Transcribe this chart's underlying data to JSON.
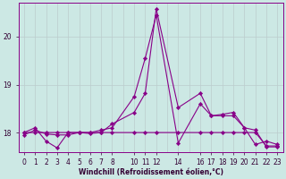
{
  "xlabel": "Windchill (Refroidissement éolien,°C)",
  "background_color": "#cce8e4",
  "grid_color": "#bbcccc",
  "line_color": "#880088",
  "ylim": [
    17.6,
    20.7
  ],
  "xlim": [
    -0.5,
    23.5
  ],
  "yticks": [
    18,
    19,
    20
  ],
  "x_positions": [
    0,
    1,
    2,
    3,
    4,
    5,
    6,
    7,
    8,
    10,
    11,
    12,
    14,
    16,
    17,
    18,
    19,
    20,
    21,
    22,
    23
  ],
  "x_tick_labels": [
    "0",
    "1",
    "2",
    "3",
    "4",
    "5",
    "6",
    "7",
    "8",
    "10",
    "11",
    "12",
    "14",
    "16",
    "17",
    "18",
    "19",
    "20",
    "21",
    "22",
    "23"
  ],
  "series1_x": [
    0,
    1,
    2,
    3,
    4,
    5,
    6,
    7,
    8,
    10,
    11,
    12,
    14,
    16,
    17,
    18,
    19,
    20,
    21,
    22,
    23
  ],
  "series1_y": [
    17.95,
    18.05,
    17.97,
    17.95,
    17.95,
    18.0,
    18.0,
    18.05,
    18.1,
    18.75,
    19.55,
    20.45,
    17.78,
    18.6,
    18.35,
    18.35,
    18.35,
    18.1,
    17.75,
    17.82,
    17.75
  ],
  "series2_x": [
    0,
    1,
    2,
    3,
    4,
    5,
    6,
    7,
    8,
    10,
    11,
    12,
    14,
    16,
    17,
    18,
    19,
    20,
    21,
    22,
    23
  ],
  "series2_y": [
    18.0,
    18.1,
    17.82,
    17.68,
    18.0,
    18.0,
    17.98,
    18.0,
    18.18,
    18.42,
    18.82,
    20.58,
    18.52,
    18.82,
    18.35,
    18.38,
    18.42,
    18.1,
    18.05,
    17.7,
    17.7
  ],
  "series3_x": [
    0,
    1,
    2,
    3,
    4,
    5,
    6,
    7,
    8,
    10,
    11,
    12,
    14,
    16,
    17,
    18,
    19,
    20,
    21,
    22,
    23
  ],
  "series3_y": [
    18.0,
    18.0,
    18.0,
    18.0,
    18.0,
    18.0,
    18.0,
    18.0,
    18.0,
    18.0,
    18.0,
    18.0,
    18.0,
    18.0,
    18.0,
    18.0,
    18.0,
    18.0,
    18.0,
    17.72,
    17.72
  ],
  "figwidth": 3.2,
  "figheight": 2.0,
  "dpi": 100
}
